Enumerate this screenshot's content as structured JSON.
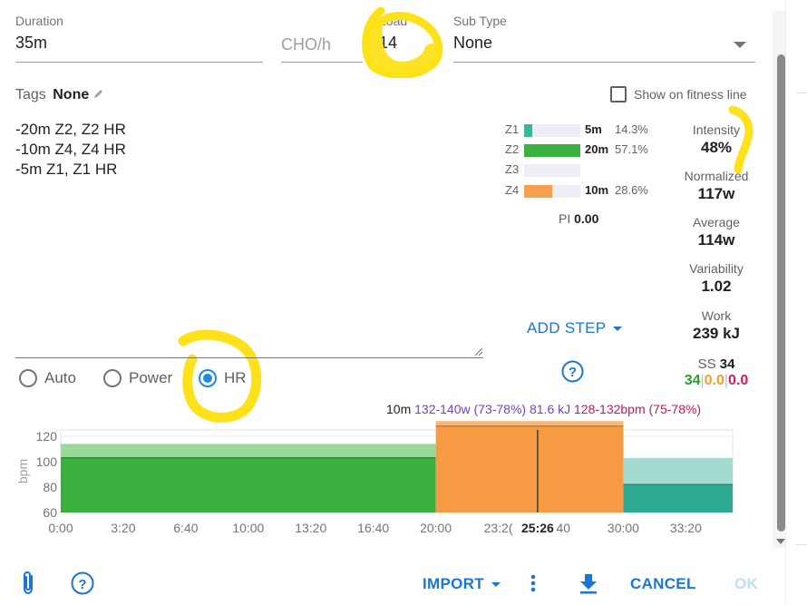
{
  "fields": {
    "duration": {
      "label": "Duration",
      "value": "35m"
    },
    "cho": {
      "placeholder": "CHO/h"
    },
    "load": {
      "label": "Load",
      "value": "14"
    },
    "subtype": {
      "label": "Sub Type",
      "value": "None"
    }
  },
  "tags": {
    "label": "Tags",
    "value": "None"
  },
  "fitness_line": {
    "label": "Show on fitness line",
    "checked": false
  },
  "description": [
    "-20m Z2, Z2 HR",
    "-10m Z4, Z4 HR",
    "-5m Z1, Z1 HR"
  ],
  "zones": [
    {
      "name": "Z1",
      "duration": "5m",
      "pct": "14.3%",
      "fraction": 0.143,
      "color": "#3fb39c"
    },
    {
      "name": "Z2",
      "duration": "20m",
      "pct": "57.1%",
      "fraction": 1.0,
      "color": "#3ab03e"
    },
    {
      "name": "Z3",
      "duration": "",
      "pct": "",
      "fraction": 0,
      "color": "#f2a04d"
    },
    {
      "name": "Z4",
      "duration": "10m",
      "pct": "28.6%",
      "fraction": 0.5,
      "color": "#f5a04f"
    }
  ],
  "pi": {
    "label": "PI",
    "value": "0.00"
  },
  "stats": {
    "intensity": {
      "label": "Intensity",
      "value": "48%"
    },
    "normalized": {
      "label": "Normalized",
      "value": "117w"
    },
    "average": {
      "label": "Average",
      "value": "114w"
    },
    "variability": {
      "label": "Variability",
      "value": "1.02"
    },
    "work": {
      "label": "Work",
      "value": "239 kJ"
    },
    "ss": {
      "label": "SS",
      "value": "34",
      "parts": [
        "34",
        "0.0",
        "0.0"
      ]
    }
  },
  "add_step": "ADD STEP",
  "radios": [
    {
      "label": "Auto",
      "selected": false
    },
    {
      "label": "Power",
      "selected": false
    },
    {
      "label": "HR",
      "selected": true
    }
  ],
  "step_summary": {
    "duration": "10m",
    "power": "132-140w (73-78%)",
    "energy": "81.6 kJ",
    "hr": "128-132bpm (75-78%)"
  },
  "chart_data": {
    "type": "area",
    "ylabel": "bpm",
    "yticks": [
      "60",
      "80",
      "100",
      "120"
    ],
    "ylim": [
      60,
      125
    ],
    "xticks": [
      "0:00",
      "3:20",
      "6:40",
      "10:00",
      "13:20",
      "16:40",
      "20:00",
      "23:2(",
      "25:26",
      "40",
      "30:00",
      "33:20"
    ],
    "x_max_min": 35.83,
    "cursor_label": "25:26",
    "cursor_min": 25.43,
    "segments": [
      {
        "start": 0,
        "end": 20,
        "hr_low": 103,
        "hr_high": 114,
        "color": "#3ab03e",
        "light": "#9ad89a"
      },
      {
        "start": 20,
        "end": 30,
        "hr_low": 128,
        "hr_high": 132,
        "color": "#f79a44",
        "light": "#f8b87b"
      },
      {
        "start": 30,
        "end": 35.83,
        "hr_low": 82,
        "hr_high": 103,
        "color": "#2eaa92",
        "light": "#a3dbd0"
      }
    ]
  },
  "footer": {
    "import": "IMPORT",
    "cancel": "CANCEL",
    "ok": "OK"
  }
}
